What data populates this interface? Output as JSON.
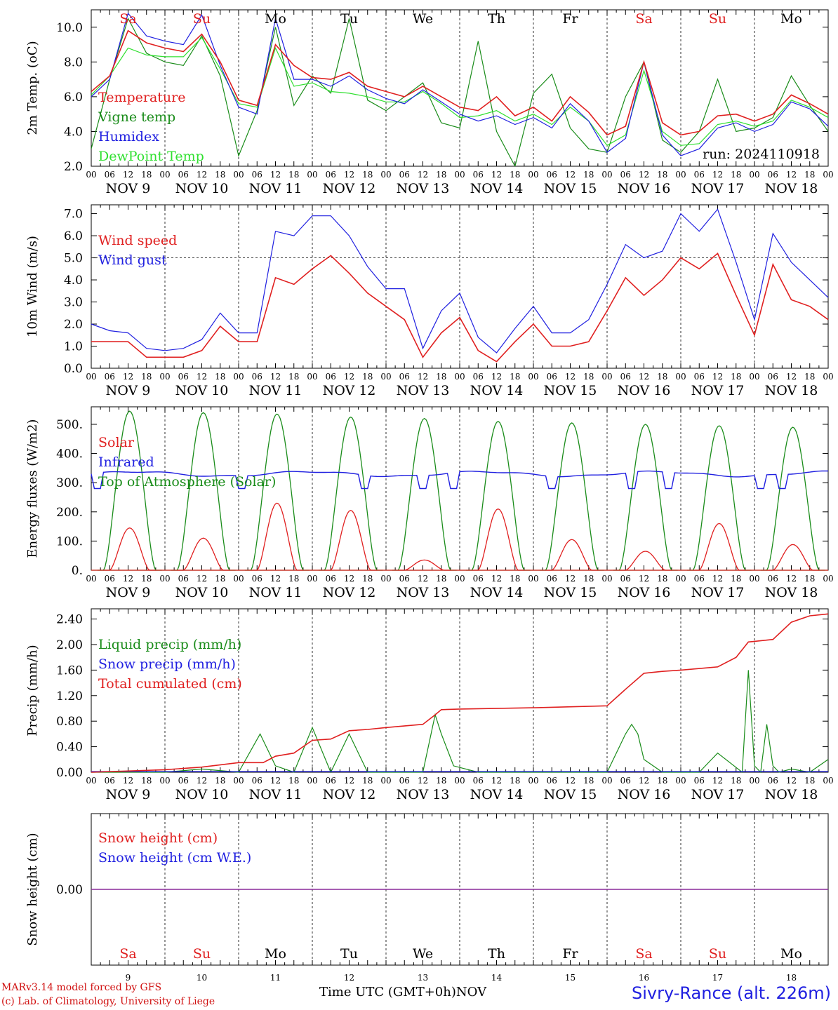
{
  "run_label": "run: 2024110918",
  "hour_ticks": [
    "00",
    "06",
    "12",
    "18"
  ],
  "day_dates": [
    "NOV  9",
    "NOV 10",
    "NOV 11",
    "NOV 12",
    "NOV 13",
    "NOV 14",
    "NOV 15",
    "NOV 16",
    "NOV 17",
    "NOV 18"
  ],
  "weekdays": [
    {
      "label": "Sa",
      "color": "#e02020"
    },
    {
      "label": "Su",
      "color": "#e02020"
    },
    {
      "label": "Mo",
      "color": "#000000"
    },
    {
      "label": "Tu",
      "color": "#000000"
    },
    {
      "label": "We",
      "color": "#000000"
    },
    {
      "label": "Th",
      "color": "#000000"
    },
    {
      "label": "Fr",
      "color": "#000000"
    },
    {
      "label": "Sa",
      "color": "#e02020"
    },
    {
      "label": "Su",
      "color": "#e02020"
    },
    {
      "label": "Mo",
      "color": "#000000"
    }
  ],
  "bottom_day_numbers": [
    "9",
    "10",
    "11",
    "12",
    "13",
    "14",
    "15",
    "16",
    "17",
    "18"
  ],
  "footer": {
    "model_line": "MARv3.14 model forced by GFS",
    "lab_line": "(c) Lab. of Climatology, University of Liege",
    "axis_title": "Time UTC (GMT+0h)",
    "month": "NOV",
    "station": "Sivry-Rance (alt. 226m)"
  },
  "chart_data": [
    {
      "type": "line",
      "ylabel": "2m Temp. (oC)",
      "ylim": [
        2,
        11
      ],
      "yticks": [
        "2.0",
        "4.0",
        "6.0",
        "8.0",
        "10.0"
      ],
      "x_unit": "hours since NOV 9 00 UTC",
      "x_range": [
        0,
        240
      ],
      "legend_placement": "left",
      "series": [
        {
          "name": "Temperature",
          "color": "#e02020",
          "x": [
            0,
            6,
            12,
            18,
            24,
            30,
            36,
            42,
            48,
            54,
            60,
            66,
            72,
            78,
            84,
            90,
            96,
            102,
            108,
            114,
            120,
            126,
            132,
            138,
            144,
            150,
            156,
            162,
            168,
            174,
            180,
            186,
            192,
            198,
            204,
            210,
            216,
            222,
            228,
            234,
            240
          ],
          "values": [
            6.3,
            7.2,
            9.8,
            9.1,
            8.8,
            8.6,
            9.6,
            8.0,
            5.8,
            5.5,
            9.0,
            7.8,
            7.1,
            7.0,
            7.4,
            6.6,
            6.3,
            6.0,
            6.6,
            6.0,
            5.4,
            5.2,
            6.0,
            4.9,
            5.4,
            4.6,
            6.0,
            5.1,
            3.8,
            4.3,
            8.0,
            4.5,
            3.8,
            4.0,
            4.9,
            5.0,
            4.6,
            5.0,
            6.1,
            5.6,
            5.0
          ]
        },
        {
          "name": "Vigne temp",
          "color": "#1a8c1a",
          "x": [
            0,
            6,
            12,
            18,
            24,
            30,
            36,
            42,
            48,
            54,
            60,
            66,
            72,
            78,
            84,
            90,
            96,
            102,
            108,
            114,
            120,
            126,
            132,
            138,
            144,
            150,
            156,
            162,
            168,
            174,
            180,
            186,
            192,
            198,
            204,
            210,
            216,
            222,
            228,
            234,
            240
          ],
          "values": [
            3.0,
            7.0,
            10.5,
            8.5,
            8.0,
            7.8,
            9.5,
            7.2,
            2.6,
            5.2,
            10.0,
            5.5,
            7.2,
            6.2,
            10.5,
            5.8,
            5.2,
            6.0,
            6.8,
            4.5,
            4.2,
            9.2,
            4.0,
            2.0,
            6.2,
            7.3,
            4.2,
            3.0,
            2.8,
            6.0,
            8.0,
            3.5,
            2.8,
            4.0,
            7.0,
            4.0,
            4.2,
            4.8,
            7.2,
            5.5,
            4.0
          ]
        },
        {
          "name": "Humidex",
          "color": "#2020e0",
          "x": [
            0,
            6,
            12,
            18,
            24,
            30,
            36,
            42,
            48,
            54,
            60,
            66,
            72,
            78,
            84,
            90,
            96,
            102,
            108,
            114,
            120,
            126,
            132,
            138,
            144,
            150,
            156,
            162,
            168,
            174,
            180,
            186,
            192,
            198,
            204,
            210,
            216,
            222,
            228,
            234,
            240
          ],
          "values": [
            6.0,
            7.0,
            10.8,
            9.5,
            9.2,
            9.0,
            10.7,
            7.8,
            5.4,
            5.0,
            10.5,
            7.0,
            7.0,
            6.6,
            7.2,
            6.4,
            5.9,
            5.6,
            6.4,
            5.7,
            5.0,
            4.6,
            4.9,
            4.4,
            4.8,
            4.2,
            5.6,
            4.6,
            2.8,
            3.6,
            8.0,
            3.8,
            2.6,
            3.0,
            4.2,
            4.5,
            4.0,
            4.4,
            5.7,
            5.3,
            4.3
          ]
        },
        {
          "name": "DewPoint Temp",
          "color": "#30e030",
          "x": [
            0,
            6,
            12,
            18,
            24,
            30,
            36,
            42,
            48,
            54,
            60,
            66,
            72,
            78,
            84,
            90,
            96,
            102,
            108,
            114,
            120,
            126,
            132,
            138,
            144,
            150,
            156,
            162,
            168,
            174,
            180,
            186,
            192,
            198,
            204,
            210,
            216,
            222,
            228,
            234,
            240
          ],
          "values": [
            6.1,
            7.2,
            8.8,
            8.4,
            8.3,
            8.3,
            9.4,
            7.6,
            5.6,
            5.4,
            8.8,
            6.6,
            6.8,
            6.3,
            6.2,
            6.0,
            5.7,
            5.7,
            6.3,
            5.6,
            4.8,
            4.9,
            5.2,
            4.6,
            5.0,
            4.4,
            5.4,
            4.6,
            3.2,
            3.8,
            7.5,
            4.0,
            3.2,
            3.3,
            4.4,
            4.6,
            4.3,
            4.6,
            5.8,
            5.4,
            4.8
          ]
        }
      ]
    },
    {
      "type": "line",
      "ylabel": "10m Wind (m/s)",
      "ylim": [
        0,
        7.4
      ],
      "yticks": [
        "0.0",
        "1.0",
        "2.0",
        "3.0",
        "4.0",
        "5.0",
        "6.0",
        "7.0"
      ],
      "reference_line": 5.0,
      "x_range": [
        0,
        240
      ],
      "legend_placement": "left",
      "series": [
        {
          "name": "Wind speed",
          "color": "#e02020",
          "x": [
            0,
            6,
            12,
            18,
            24,
            30,
            36,
            42,
            48,
            54,
            60,
            66,
            72,
            78,
            84,
            90,
            96,
            102,
            108,
            114,
            120,
            126,
            132,
            138,
            144,
            150,
            156,
            162,
            168,
            174,
            180,
            186,
            192,
            198,
            204,
            210,
            216,
            222,
            228,
            234,
            240
          ],
          "values": [
            1.2,
            1.2,
            1.2,
            0.5,
            0.5,
            0.5,
            0.8,
            1.9,
            1.2,
            1.2,
            4.1,
            3.8,
            4.5,
            5.1,
            4.3,
            3.4,
            2.8,
            2.2,
            0.5,
            1.6,
            2.3,
            0.8,
            0.3,
            1.2,
            2.0,
            1.0,
            1.0,
            1.2,
            2.6,
            4.1,
            3.3,
            4.0,
            5.0,
            4.5,
            5.2,
            3.3,
            1.5,
            4.7,
            3.1,
            2.8,
            2.2
          ]
        },
        {
          "name": "Wind gust",
          "color": "#2020e0",
          "x": [
            0,
            6,
            12,
            18,
            24,
            30,
            36,
            42,
            48,
            54,
            60,
            66,
            72,
            78,
            84,
            90,
            96,
            102,
            108,
            114,
            120,
            126,
            132,
            138,
            144,
            150,
            156,
            162,
            168,
            174,
            180,
            186,
            192,
            198,
            204,
            210,
            216,
            222,
            228,
            234,
            240
          ],
          "values": [
            2.0,
            1.7,
            1.6,
            0.9,
            0.8,
            0.9,
            1.3,
            2.5,
            1.6,
            1.6,
            6.2,
            6.0,
            6.9,
            6.9,
            6.0,
            4.6,
            3.6,
            3.6,
            0.9,
            2.6,
            3.4,
            1.4,
            0.7,
            1.8,
            2.8,
            1.6,
            1.6,
            2.2,
            3.8,
            5.6,
            5.0,
            5.3,
            7.0,
            6.2,
            7.2,
            4.8,
            2.2,
            6.1,
            4.8,
            4.0,
            3.2
          ]
        }
      ]
    },
    {
      "type": "line",
      "ylabel": "Energy fluxes (W/m2)",
      "ylim": [
        0,
        560
      ],
      "yticks": [
        "0.",
        "100.",
        "200.",
        "300.",
        "400.",
        "500."
      ],
      "x_range": [
        0,
        240
      ],
      "legend_placement": "left",
      "series": [
        {
          "name": "Solar",
          "color": "#e02020",
          "days": [
            9,
            10,
            11,
            12,
            13,
            14,
            15,
            16,
            17,
            18
          ],
          "peaks": [
            145,
            110,
            230,
            205,
            35,
            210,
            105,
            65,
            160,
            88
          ]
        },
        {
          "name": "Infrared",
          "color": "#2020e0",
          "approx_level": 330,
          "range": [
            255,
            345
          ]
        },
        {
          "name": "Top of Atmosphere (Solar)",
          "color": "#1a8c1a",
          "days": [
            9,
            10,
            11,
            12,
            13,
            14,
            15,
            16,
            17,
            18
          ],
          "peaks": [
            545,
            540,
            535,
            525,
            520,
            510,
            505,
            500,
            495,
            490
          ]
        }
      ]
    },
    {
      "type": "line",
      "ylabel": "Precip (mm/h)",
      "ylim": [
        0,
        2.56
      ],
      "yticks": [
        "0.00",
        "0.40",
        "0.80",
        "1.20",
        "1.60",
        "2.00",
        "2.40"
      ],
      "x_range": [
        0,
        240
      ],
      "legend_placement": "left",
      "series": [
        {
          "name": "Liquid precip (mm/h)",
          "color": "#1a8c1a",
          "x": [
            0,
            24,
            36,
            48,
            55,
            60,
            66,
            72,
            78,
            84,
            90,
            96,
            108,
            112,
            114,
            118,
            126,
            144,
            168,
            174,
            176,
            178,
            180,
            186,
            192,
            198,
            204,
            212,
            214,
            216,
            218,
            220,
            222,
            224,
            228,
            234,
            240
          ],
          "values": [
            0.0,
            0.0,
            0.05,
            0.0,
            0.6,
            0.1,
            0.0,
            0.7,
            0.0,
            0.6,
            0.0,
            0.0,
            0.0,
            0.9,
            0.6,
            0.1,
            0.0,
            0.0,
            0.0,
            0.6,
            0.75,
            0.6,
            0.2,
            0.0,
            0.0,
            0.0,
            0.3,
            0.0,
            1.6,
            0.1,
            0.0,
            0.75,
            0.1,
            0.0,
            0.05,
            0.0,
            0.2
          ]
        },
        {
          "name": "Snow precip (mm/h)",
          "color": "#2020e0",
          "approx_level": 0.0
        },
        {
          "name": "Total cumulated (cm)",
          "color": "#e02020",
          "x": [
            0,
            24,
            36,
            48,
            56,
            60,
            66,
            72,
            78,
            84,
            90,
            96,
            108,
            112,
            114,
            120,
            144,
            168,
            174,
            180,
            186,
            192,
            204,
            210,
            214,
            216,
            222,
            228,
            234,
            240
          ],
          "values": [
            0.0,
            0.04,
            0.08,
            0.15,
            0.15,
            0.25,
            0.3,
            0.5,
            0.52,
            0.65,
            0.67,
            0.7,
            0.75,
            0.9,
            0.98,
            0.99,
            1.01,
            1.04,
            1.3,
            1.55,
            1.58,
            1.6,
            1.65,
            1.8,
            2.04,
            2.05,
            2.08,
            2.35,
            2.45,
            2.48
          ]
        }
      ]
    },
    {
      "type": "line",
      "ylabel": "Snow height (cm)",
      "yticks": [
        "0.00"
      ],
      "x_range": [
        0,
        240
      ],
      "legend_placement": "left",
      "series": [
        {
          "name": "Snow height (cm)",
          "color": "#e02020",
          "approx_level": 0.0
        },
        {
          "name": "Snow height (cm W.E.)",
          "color": "#2020e0",
          "approx_level": 0.0
        }
      ]
    }
  ]
}
